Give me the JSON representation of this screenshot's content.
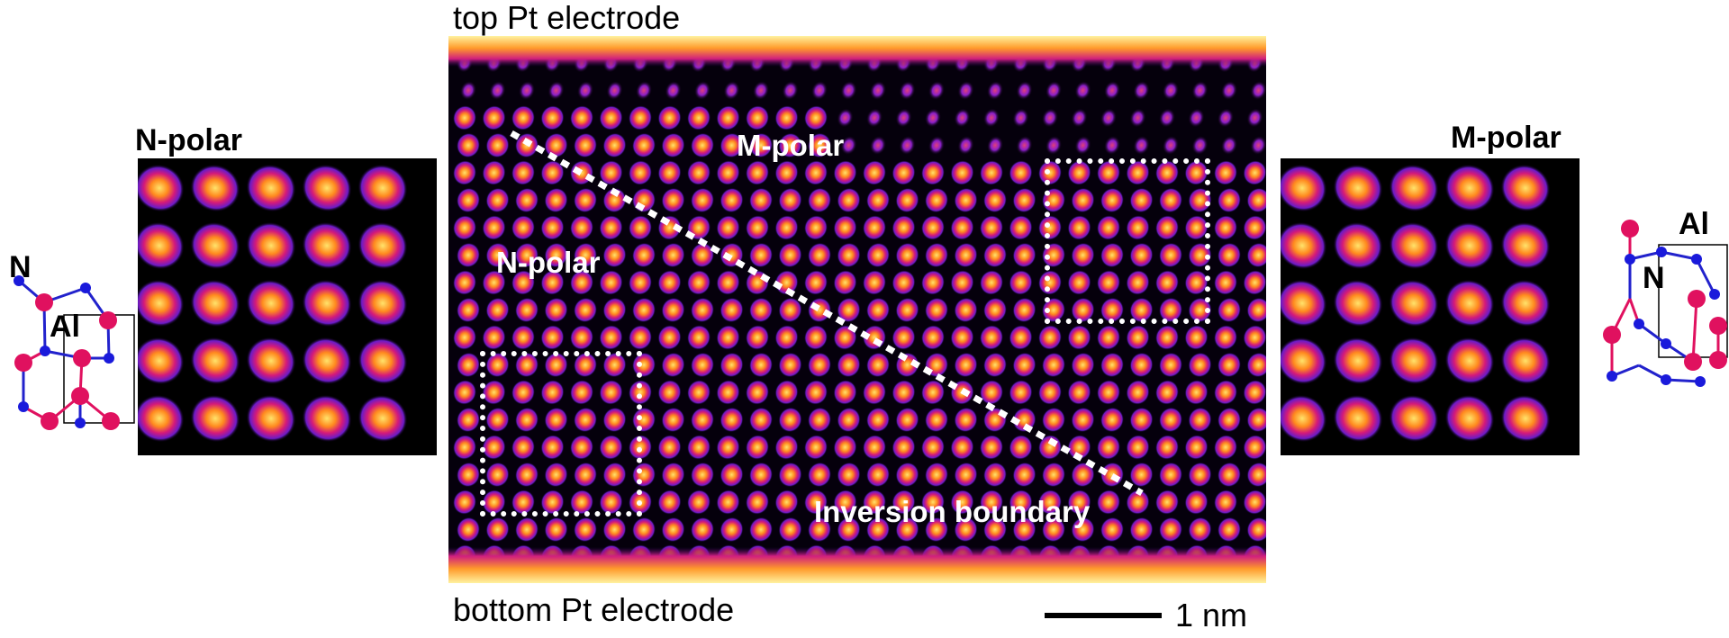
{
  "captions": {
    "top_electrode": "top Pt electrode",
    "bottom_electrode": "bottom Pt electrode",
    "scale_bar": "1 nm"
  },
  "left_inset": {
    "title": "N-polar"
  },
  "right_inset": {
    "title": "M-polar"
  },
  "main_image": {
    "label_m_polar": "M-polar",
    "label_n_polar": "N-polar",
    "label_boundary": "Inversion boundary"
  },
  "left_structure": {
    "atom_n": "N",
    "atom_al": "Al"
  },
  "right_structure": {
    "atom_n": "N",
    "atom_al": "Al"
  },
  "colors": {
    "atom_n": "#1a1adb",
    "atom_al": "#e0115f",
    "lattice_glow": "#7a1fd6",
    "atom_core": "#ffd24a"
  }
}
